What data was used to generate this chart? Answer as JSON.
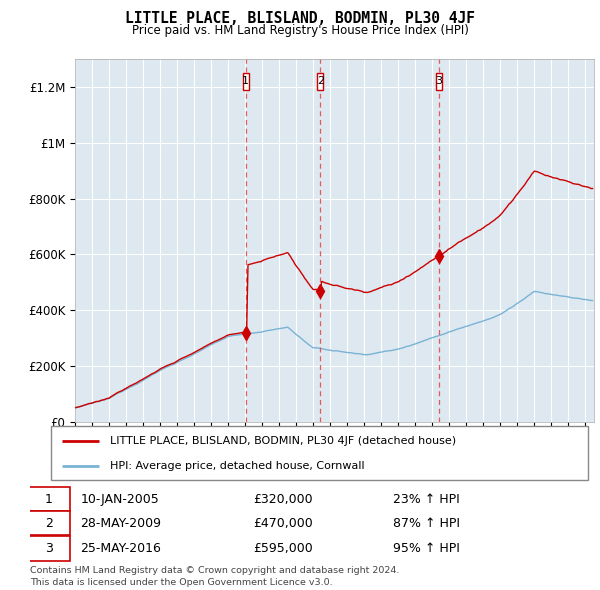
{
  "title": "LITTLE PLACE, BLISLAND, BODMIN, PL30 4JF",
  "subtitle": "Price paid vs. HM Land Registry's House Price Index (HPI)",
  "legend_line1": "LITTLE PLACE, BLISLAND, BODMIN, PL30 4JF (detached house)",
  "legend_line2": "HPI: Average price, detached house, Cornwall",
  "footnote1": "Contains HM Land Registry data © Crown copyright and database right 2024.",
  "footnote2": "This data is licensed under the Open Government Licence v3.0.",
  "purchases": [
    {
      "num": 1,
      "date": "10-JAN-2005",
      "price": 320000,
      "pct": "23%",
      "x": 2005.03
    },
    {
      "num": 2,
      "date": "28-MAY-2009",
      "price": 470000,
      "pct": "87%",
      "x": 2009.41
    },
    {
      "num": 3,
      "date": "25-MAY-2016",
      "price": 595000,
      "pct": "95%",
      "x": 2016.4
    }
  ],
  "hpi_color": "#7ab3d4",
  "red_color": "#cc0000",
  "ylim": [
    0,
    1300000
  ],
  "xlim_start": 1995.0,
  "xlim_end": 2025.5,
  "yticks": [
    0,
    200000,
    400000,
    600000,
    800000,
    1000000,
    1200000
  ],
  "ytick_labels": [
    "£0",
    "£200K",
    "£400K",
    "£600K",
    "£800K",
    "£1M",
    "£1.2M"
  ],
  "xticks": [
    1995,
    1996,
    1997,
    1998,
    1999,
    2000,
    2001,
    2002,
    2003,
    2004,
    2005,
    2006,
    2007,
    2008,
    2009,
    2010,
    2011,
    2012,
    2013,
    2014,
    2015,
    2016,
    2017,
    2018,
    2019,
    2020,
    2021,
    2022,
    2023,
    2024,
    2025
  ],
  "bg_color": "#dde8f0",
  "chart_bg": "#dde8f0"
}
